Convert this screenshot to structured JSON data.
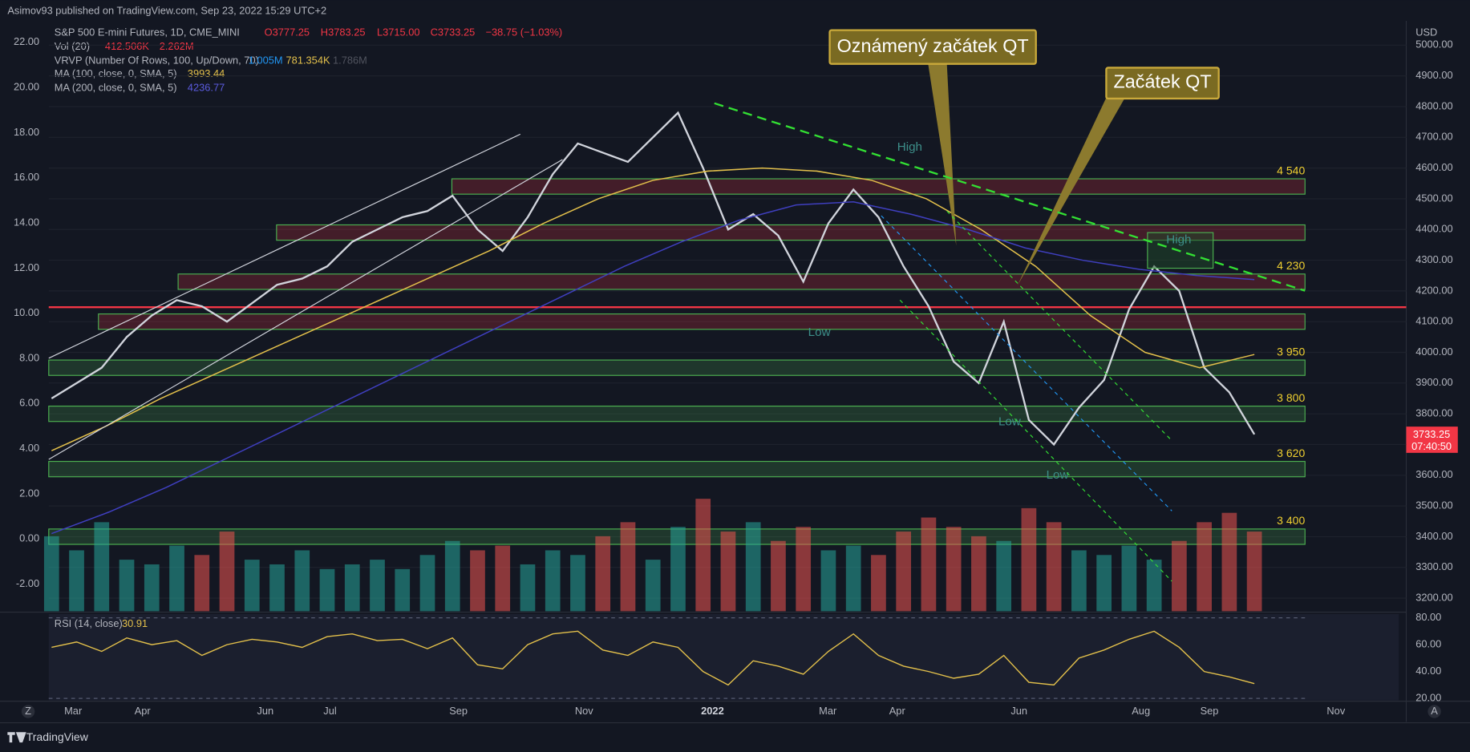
{
  "header": {
    "published": "Asimov93 published on TradingView.com, Sep 23, 2022 15:29 UTC+2"
  },
  "legend": {
    "symbol": "S&P 500 E-mini Futures, 1D, CME_MINI",
    "open": "O3777.25",
    "high": "H3783.25",
    "low": "L3715.00",
    "close": "C3733.25",
    "change": "−38.75 (−1.03%)",
    "vol": "Vol (20)",
    "vol_a": "412.506K",
    "vol_b": "2.262M",
    "vrvp": "VRVP (Number Of Rows, 100, Up/Down, 70)",
    "vrvp_a": "1.005M",
    "vrvp_b": "781.354K",
    "vrvp_c": "1.786M",
    "ma100": "MA (100, close, 0, SMA, 5)",
    "ma100_v": "3993.44",
    "ma200": "MA (200, close, 0, SMA, 5)",
    "ma200_v": "4236.77",
    "rsi": "RSI (14, close)",
    "rsi_v": "30.91"
  },
  "annotations": {
    "callout1": "Oznámený začátek QT",
    "callout2": "Začátek QT",
    "high1": "High",
    "high2": "High",
    "low1": "Low",
    "low2": "Low",
    "low3": "Low",
    "currency": "USD",
    "last_price": "3733.25",
    "countdown": "07:40:50",
    "footer": "TradingView",
    "btn_left": "Z",
    "btn_right": "A"
  },
  "chart_data": {
    "type": "line",
    "title": "S&P 500 E-mini Futures",
    "xticks": [
      "Mar",
      "Apr",
      "Jun",
      "Jul",
      "Sep",
      "Nov",
      "2022",
      "Mar",
      "Apr",
      "Jun",
      "Aug",
      "Sep",
      "Nov"
    ],
    "ylim": [
      3200,
      5000
    ],
    "yticks": [
      {
        "value": 3200,
        "label": "3200.00"
      },
      {
        "value": 3300,
        "label": "3300.00"
      },
      {
        "value": 3400,
        "label": "3400.00"
      },
      {
        "value": 3500,
        "label": "3500.00"
      },
      {
        "value": 3600,
        "label": "3600.00"
      },
      {
        "value": 3700,
        "label": "3700.00"
      },
      {
        "value": 3800,
        "label": "3800.00"
      },
      {
        "value": 3900,
        "label": "3900.00"
      },
      {
        "value": 4000,
        "label": "4000.00"
      },
      {
        "value": 4100,
        "label": "4100.00"
      },
      {
        "value": 4200,
        "label": "4200.00"
      },
      {
        "value": 4300,
        "label": "4300.00"
      },
      {
        "value": 4400,
        "label": "4400.00"
      },
      {
        "value": 4500,
        "label": "4500.00"
      },
      {
        "value": 4600,
        "label": "4600.00"
      },
      {
        "value": 4700,
        "label": "4700.00"
      },
      {
        "value": 4800,
        "label": "4800.00"
      },
      {
        "value": 4900,
        "label": "4900.00"
      },
      {
        "value": 5000,
        "label": "5000.00"
      }
    ],
    "y2lim": [
      -2,
      22
    ],
    "y2ticks": [
      {
        "value": 22,
        "label": "22.00"
      },
      {
        "value": 20,
        "label": "20.00"
      },
      {
        "value": 18,
        "label": "18.00"
      },
      {
        "value": 16,
        "label": "16.00"
      },
      {
        "value": 14,
        "label": "14.00"
      },
      {
        "value": 12,
        "label": "12.00"
      },
      {
        "value": 10,
        "label": "10.00"
      },
      {
        "value": 8,
        "label": "8.00"
      },
      {
        "value": 6,
        "label": "6.00"
      },
      {
        "value": 4,
        "label": "4.00"
      },
      {
        "value": 2,
        "label": "2.00"
      },
      {
        "value": 0,
        "label": "0.00"
      },
      {
        "value": -2,
        "label": "-2.00"
      }
    ],
    "series": [
      {
        "name": "Close",
        "color": "#d1d4dc",
        "values": [
          3850,
          3900,
          3950,
          4050,
          4120,
          4170,
          4150,
          4100,
          4160,
          4220,
          4240,
          4280,
          4360,
          4400,
          4440,
          4460,
          4510,
          4400,
          4330,
          4440,
          4580,
          4680,
          4650,
          4620,
          4700,
          4780,
          4600,
          4400,
          4450,
          4380,
          4230,
          4420,
          4530,
          4440,
          4280,
          4150,
          3970,
          3900,
          4100,
          3780,
          3700,
          3820,
          3910,
          4140,
          4280,
          4200,
          3950,
          3870,
          3733
        ]
      },
      {
        "name": "MA (100, close, 0, SMA, 5)",
        "color": "#e3c04b",
        "values": [
          3680,
          3760,
          3850,
          3930,
          4010,
          4090,
          4170,
          4250,
          4330,
          4420,
          4500,
          4560,
          4590,
          4600,
          4590,
          4560,
          4500,
          4400,
          4280,
          4120,
          4000,
          3950,
          3993
        ]
      },
      {
        "name": "MA (200, close, 0, SMA, 5)",
        "color": "#3f3fbf",
        "values": [
          3410,
          3480,
          3560,
          3650,
          3740,
          3830,
          3920,
          4010,
          4100,
          4190,
          4280,
          4360,
          4430,
          4480,
          4490,
          4450,
          4400,
          4340,
          4300,
          4270,
          4250,
          4237
        ]
      }
    ],
    "levels": [
      {
        "value": 4540,
        "label": "4 540",
        "color": "#f23645"
      },
      {
        "value": 4390,
        "color": "#f23645"
      },
      {
        "value": 4230,
        "label": "4 230",
        "color": "#f23645"
      },
      {
        "value": 4100,
        "color": "#f23645"
      },
      {
        "value": 3950,
        "label": "3 950",
        "color": "#4caf50"
      },
      {
        "value": 3800,
        "label": "3 800",
        "color": "#4caf50"
      },
      {
        "value": 3620,
        "label": "3 620",
        "color": "#4caf50"
      },
      {
        "value": 3400,
        "label": "3 400",
        "color": "#4caf50"
      }
    ],
    "resistance": 4147,
    "volume": {
      "name": "Vol",
      "values": [
        1.6,
        1.3,
        1.9,
        1.1,
        1.0,
        1.4,
        1.2,
        1.7,
        1.1,
        1.0,
        1.3,
        0.9,
        1.0,
        1.1,
        0.9,
        1.2,
        1.5,
        1.3,
        1.4,
        1.0,
        1.3,
        1.2,
        1.6,
        1.9,
        1.1,
        1.8,
        2.4,
        1.7,
        1.9,
        1.5,
        1.8,
        1.3,
        1.4,
        1.2,
        1.7,
        2.0,
        1.8,
        1.6,
        1.5,
        2.2,
        1.9,
        1.3,
        1.2,
        1.4,
        1.1,
        1.5,
        1.9,
        2.1,
        1.7
      ]
    },
    "rsi": {
      "name": "RSI",
      "ylim": [
        20,
        80
      ],
      "yticks": [
        {
          "value": 80,
          "label": "80.00"
        },
        {
          "value": 60,
          "label": "60.00"
        },
        {
          "value": 40,
          "label": "40.00"
        },
        {
          "value": 20,
          "label": "20.00"
        }
      ],
      "values": [
        58,
        62,
        55,
        65,
        60,
        63,
        52,
        60,
        64,
        62,
        58,
        66,
        68,
        63,
        64,
        57,
        65,
        45,
        42,
        60,
        68,
        70,
        56,
        52,
        62,
        58,
        40,
        30,
        48,
        44,
        38,
        55,
        68,
        52,
        44,
        40,
        35,
        38,
        52,
        32,
        30,
        50,
        56,
        64,
        70,
        58,
        40,
        36,
        31
      ]
    }
  }
}
